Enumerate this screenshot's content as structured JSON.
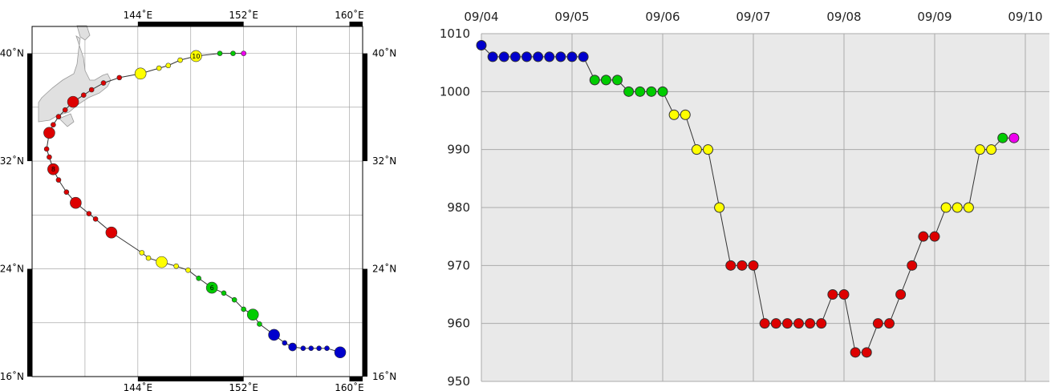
{
  "chart_data": [
    {
      "type": "map",
      "x_ticks": [
        {
          "lon": 144,
          "label": "144˚E"
        },
        {
          "lon": 152,
          "label": "152˚E"
        },
        {
          "lon": 160,
          "label": "160˚E"
        }
      ],
      "y_ticks": [
        {
          "lat": 16,
          "label": "16˚N"
        },
        {
          "lat": 24,
          "label": "24˚N"
        },
        {
          "lat": 32,
          "label": "32˚N"
        },
        {
          "lat": 40,
          "label": "40˚N"
        }
      ],
      "xlim": [
        136,
        161
      ],
      "ylim": [
        16,
        42
      ],
      "track": [
        {
          "lon": 159.3,
          "lat": 17.8,
          "color": "#0000cc",
          "size": "large"
        },
        {
          "lon": 158.3,
          "lat": 18.1,
          "color": "#0000cc",
          "size": "small"
        },
        {
          "lon": 157.7,
          "lat": 18.1,
          "color": "#0000cc",
          "size": "small"
        },
        {
          "lon": 157.1,
          "lat": 18.1,
          "color": "#0000cc",
          "size": "small"
        },
        {
          "lon": 156.5,
          "lat": 18.1,
          "color": "#0000cc",
          "size": "small"
        },
        {
          "lon": 155.7,
          "lat": 18.2,
          "color": "#0000cc",
          "size": "medium"
        },
        {
          "lon": 155.1,
          "lat": 18.5,
          "color": "#0000cc",
          "size": "small"
        },
        {
          "lon": 154.3,
          "lat": 19.1,
          "color": "#0000cc",
          "size": "large"
        },
        {
          "lon": 153.2,
          "lat": 19.9,
          "color": "#00cc00",
          "size": "small"
        },
        {
          "lon": 152.7,
          "lat": 20.6,
          "color": "#00cc00",
          "size": "large"
        },
        {
          "lon": 152.0,
          "lat": 21.0,
          "color": "#00cc00",
          "size": "small"
        },
        {
          "lon": 151.3,
          "lat": 21.7,
          "color": "#00cc00",
          "size": "small"
        },
        {
          "lon": 150.5,
          "lat": 22.2,
          "color": "#00cc00",
          "size": "small"
        },
        {
          "lon": 149.6,
          "lat": 22.6,
          "color": "#00cc00",
          "size": "large",
          "label": "6"
        },
        {
          "lon": 148.6,
          "lat": 23.3,
          "color": "#00cc00",
          "size": "small"
        },
        {
          "lon": 147.8,
          "lat": 23.9,
          "color": "#ffff00",
          "size": "small"
        },
        {
          "lon": 146.9,
          "lat": 24.2,
          "color": "#ffff00",
          "size": "small"
        },
        {
          "lon": 145.8,
          "lat": 24.5,
          "color": "#ffff00",
          "size": "large"
        },
        {
          "lon": 144.8,
          "lat": 24.8,
          "color": "#ffff00",
          "size": "small"
        },
        {
          "lon": 144.3,
          "lat": 25.2,
          "color": "#ffff00",
          "size": "small"
        },
        {
          "lon": 142.0,
          "lat": 26.7,
          "color": "#dd0000",
          "size": "large"
        },
        {
          "lon": 140.8,
          "lat": 27.7,
          "color": "#dd0000",
          "size": "small"
        },
        {
          "lon": 140.3,
          "lat": 28.1,
          "color": "#dd0000",
          "size": "small"
        },
        {
          "lon": 139.3,
          "lat": 28.9,
          "color": "#dd0000",
          "size": "large"
        },
        {
          "lon": 138.6,
          "lat": 29.7,
          "color": "#dd0000",
          "size": "small"
        },
        {
          "lon": 138.0,
          "lat": 30.6,
          "color": "#dd0000",
          "size": "small"
        },
        {
          "lon": 137.6,
          "lat": 31.4,
          "color": "#dd0000",
          "size": "large",
          "label": "8"
        },
        {
          "lon": 137.3,
          "lat": 32.3,
          "color": "#dd0000",
          "size": "small"
        },
        {
          "lon": 137.1,
          "lat": 32.9,
          "color": "#dd0000",
          "size": "small"
        },
        {
          "lon": 137.3,
          "lat": 34.1,
          "color": "#dd0000",
          "size": "large"
        },
        {
          "lon": 137.6,
          "lat": 34.7,
          "color": "#dd0000",
          "size": "small"
        },
        {
          "lon": 138.0,
          "lat": 35.3,
          "color": "#dd0000",
          "size": "small"
        },
        {
          "lon": 138.5,
          "lat": 35.8,
          "color": "#dd0000",
          "size": "small"
        },
        {
          "lon": 139.1,
          "lat": 36.4,
          "color": "#dd0000",
          "size": "large"
        },
        {
          "lon": 139.9,
          "lat": 36.9,
          "color": "#dd0000",
          "size": "small"
        },
        {
          "lon": 140.5,
          "lat": 37.3,
          "color": "#dd0000",
          "size": "small"
        },
        {
          "lon": 141.4,
          "lat": 37.8,
          "color": "#dd0000",
          "size": "small"
        },
        {
          "lon": 142.6,
          "lat": 38.2,
          "color": "#dd0000",
          "size": "small"
        },
        {
          "lon": 144.2,
          "lat": 38.5,
          "color": "#ffff00",
          "size": "large"
        },
        {
          "lon": 145.6,
          "lat": 38.9,
          "color": "#ffff00",
          "size": "small"
        },
        {
          "lon": 146.3,
          "lat": 39.1,
          "color": "#ffff00",
          "size": "small"
        },
        {
          "lon": 147.2,
          "lat": 39.5,
          "color": "#ffff00",
          "size": "small"
        },
        {
          "lon": 148.4,
          "lat": 39.8,
          "color": "#ffff00",
          "size": "large",
          "label": "10"
        },
        {
          "lon": 150.2,
          "lat": 40.0,
          "color": "#00cc00",
          "size": "small"
        },
        {
          "lon": 151.2,
          "lat": 40.0,
          "color": "#00cc00",
          "size": "small"
        },
        {
          "lon": 152.0,
          "lat": 40.0,
          "color": "#ee00ee",
          "size": "small"
        }
      ]
    },
    {
      "type": "line",
      "x_labels": [
        "09/04",
        "09/05",
        "09/06",
        "09/07",
        "09/08",
        "09/09",
        "09/10"
      ],
      "x_start": "09/04",
      "x_step_hours": 3,
      "ylim": [
        950,
        1010
      ],
      "yticks": [
        950,
        960,
        970,
        980,
        990,
        1000,
        1010
      ],
      "grid": true,
      "points": [
        {
          "hour": 0,
          "value": 1008,
          "color": "#0000cc"
        },
        {
          "hour": 3,
          "value": 1006,
          "color": "#0000cc"
        },
        {
          "hour": 6,
          "value": 1006,
          "color": "#0000cc"
        },
        {
          "hour": 9,
          "value": 1006,
          "color": "#0000cc"
        },
        {
          "hour": 12,
          "value": 1006,
          "color": "#0000cc"
        },
        {
          "hour": 15,
          "value": 1006,
          "color": "#0000cc"
        },
        {
          "hour": 18,
          "value": 1006,
          "color": "#0000cc"
        },
        {
          "hour": 21,
          "value": 1006,
          "color": "#0000cc"
        },
        {
          "hour": 24,
          "value": 1006,
          "color": "#0000cc"
        },
        {
          "hour": 27,
          "value": 1006,
          "color": "#0000cc"
        },
        {
          "hour": 30,
          "value": 1002,
          "color": "#00cc00"
        },
        {
          "hour": 33,
          "value": 1002,
          "color": "#00cc00"
        },
        {
          "hour": 36,
          "value": 1002,
          "color": "#00cc00"
        },
        {
          "hour": 39,
          "value": 1000,
          "color": "#00cc00"
        },
        {
          "hour": 42,
          "value": 1000,
          "color": "#00cc00"
        },
        {
          "hour": 45,
          "value": 1000,
          "color": "#00cc00"
        },
        {
          "hour": 48,
          "value": 1000,
          "color": "#00cc00"
        },
        {
          "hour": 51,
          "value": 996,
          "color": "#ffff00"
        },
        {
          "hour": 54,
          "value": 996,
          "color": "#ffff00"
        },
        {
          "hour": 57,
          "value": 990,
          "color": "#ffff00"
        },
        {
          "hour": 60,
          "value": 990,
          "color": "#ffff00"
        },
        {
          "hour": 63,
          "value": 980,
          "color": "#ffff00"
        },
        {
          "hour": 66,
          "value": 970,
          "color": "#dd0000"
        },
        {
          "hour": 69,
          "value": 970,
          "color": "#dd0000"
        },
        {
          "hour": 72,
          "value": 970,
          "color": "#dd0000"
        },
        {
          "hour": 75,
          "value": 960,
          "color": "#dd0000"
        },
        {
          "hour": 78,
          "value": 960,
          "color": "#dd0000"
        },
        {
          "hour": 81,
          "value": 960,
          "color": "#dd0000"
        },
        {
          "hour": 84,
          "value": 960,
          "color": "#dd0000"
        },
        {
          "hour": 87,
          "value": 960,
          "color": "#dd0000"
        },
        {
          "hour": 90,
          "value": 960,
          "color": "#dd0000"
        },
        {
          "hour": 93,
          "value": 965,
          "color": "#dd0000"
        },
        {
          "hour": 96,
          "value": 965,
          "color": "#dd0000"
        },
        {
          "hour": 99,
          "value": 955,
          "color": "#dd0000"
        },
        {
          "hour": 102,
          "value": 955,
          "color": "#dd0000"
        },
        {
          "hour": 105,
          "value": 960,
          "color": "#dd0000"
        },
        {
          "hour": 108,
          "value": 960,
          "color": "#dd0000"
        },
        {
          "hour": 111,
          "value": 965,
          "color": "#dd0000"
        },
        {
          "hour": 114,
          "value": 970,
          "color": "#dd0000"
        },
        {
          "hour": 117,
          "value": 975,
          "color": "#dd0000"
        },
        {
          "hour": 120,
          "value": 975,
          "color": "#dd0000"
        },
        {
          "hour": 123,
          "value": 980,
          "color": "#ffff00"
        },
        {
          "hour": 126,
          "value": 980,
          "color": "#ffff00"
        },
        {
          "hour": 129,
          "value": 980,
          "color": "#ffff00"
        },
        {
          "hour": 132,
          "value": 990,
          "color": "#ffff00"
        },
        {
          "hour": 135,
          "value": 990,
          "color": "#ffff00"
        },
        {
          "hour": 138,
          "value": 992,
          "color": "#00cc00"
        },
        {
          "hour": 141,
          "value": 992,
          "color": "#ee00ee"
        }
      ]
    }
  ]
}
